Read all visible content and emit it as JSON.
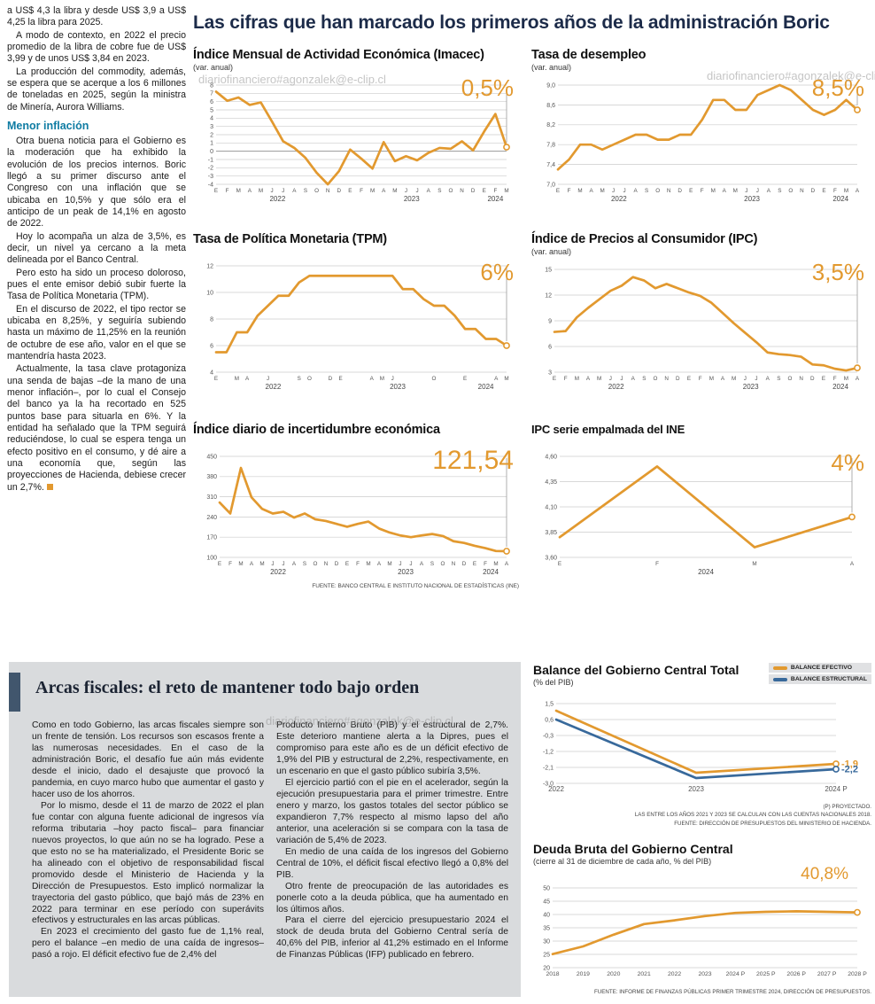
{
  "headline": "Las cifras que han marcado los primeros años de la administración Boric",
  "watermark": "diariofinanciero#agonzalek@e-clip.cl",
  "colors": {
    "accent_orange": "#E2992F",
    "accent_blue": "#38699B",
    "subhead_teal": "#0f7ca3",
    "headline_navy": "#1c2b49",
    "fiscal_box_bg": "#d9dbdd",
    "fiscal_accent_bar": "#41566d"
  },
  "article": {
    "paragraphs": [
      "a US$ 4,3 la libra y desde US$ 3,9 a US$ 4,25 la libra para 2025.",
      "A modo de contexto, en 2022 el precio promedio de la libra de cobre fue de US$ 3,99 y de unos US$ 3,84 en 2023.",
      "La producción del commodity, además, se espera que se acerque a los 6 millones de toneladas en 2025, según la ministra de Minería, Aurora Williams.",
      "Otra buena noticia para el Gobierno es la moderación que ha exhibido la evolución de los precios internos. Boric llegó a su primer discurso ante el Congreso con una inflación que se ubicaba en 10,5% y que sólo era el anticipo de un peak de 14,1% en agosto de 2022.",
      "Hoy lo acompaña un alza de 3,5%, es decir, un nivel ya cercano a la meta delineada por el Banco Central.",
      "Pero esto ha sido un proceso doloroso, pues el ente emisor debió subir fuerte la Tasa de Política Monetaria (TPM).",
      "En el discurso de 2022, el tipo rector se ubicaba en 8,25%, y seguiría subiendo hasta un máximo de 11,25% en la reunión de octubre de ese año, valor en el que se mantendría hasta 2023.",
      "Actualmente, la tasa clave protagoniza una senda de bajas –de la mano de una menor inflación–, por lo cual el Consejo del banco ya la ha recortado en 525 puntos base para situarla en 6%. Y la entidad ha señalado que la TPM seguirá reduciéndose, lo cual se espera tenga un efecto positivo en el consumo, y dé aire a una economía que, según las proyecciones de Hacienda, debiese crecer un 2,7%."
    ],
    "subhead": "Menor inflación"
  },
  "fiscal": {
    "headline": "Arcas fiscales: el reto de mantener todo bajo orden",
    "col1": [
      "Como en todo Gobierno, las arcas fiscales siempre son un frente de tensión. Los recursos son escasos frente a las numerosas necesidades. En el caso de la administración Boric, el desafío fue aún más evidente desde el inicio, dado el desajuste que provocó la pandemia, en cuyo marco hubo que aumentar el gasto y hacer uso de los ahorros.",
      "Por lo mismo, desde el 11 de marzo de 2022 el plan fue contar con alguna fuente adicional de ingresos vía reforma tributaria –hoy pacto fiscal– para financiar nuevos proyectos, lo que aún no se ha logrado. Pese a que esto no se ha materializado, el Presidente Boric se ha alineado con el objetivo de responsabilidad fiscal promovido desde el Ministerio de Hacienda y la Dirección de Presupuestos. Esto implicó normalizar la trayectoria del gasto público, que bajó más de 23% en 2022 para terminar en ese período con superávits efectivos y estructurales en las arcas públicas.",
      "En 2023 el crecimiento del gasto fue de 1,1% real, pero el balance –en medio de una caída de ingresos– pasó a rojo. El déficit efectivo fue de 2,4% del"
    ],
    "col2": [
      "Producto Interno Bruto (PIB) y el estructural de 2,7%. Este deterioro mantiene alerta a la Dipres, pues el compromiso para este año es de un déficit efectivo de 1,9% del PIB y estructural de 2,2%, respectivamente, en un escenario en que el gasto público subiría 3,5%.",
      "El ejercicio partió con el pie en el acelerador, según la ejecución presupuestaria para el primer trimestre. Entre enero y marzo, los gastos totales del sector público se expandieron 7,7% respecto al mismo lapso del año anterior, una aceleración si se compara con la tasa de variación de 5,4% de 2023.",
      "En medio de una caída de los ingresos del Gobierno Central de 10%, el déficit fiscal efectivo llegó a 0,8% del PIB.",
      "Otro frente de preocupación de las autoridades es ponerle coto a la deuda pública, que ha aumentado en los últimos años.",
      "Para el cierre del ejercicio presupuestario 2024 el stock de deuda bruta del Gobierno Central sería de 40,6% del PIB, inferior al 41,2% estimado en el Informe de Finanzas Públicas (IFP) publicado en febrero."
    ]
  },
  "chart_data": [
    {
      "id": "imacec",
      "type": "line",
      "title": "Índice Mensual de Actividad Económica (Imacec)",
      "subtitle": "(var. anual)",
      "big_value": "0,5%",
      "ylim": [
        -4,
        8
      ],
      "yticks": [
        8,
        7,
        6,
        5,
        4,
        3,
        2,
        1,
        0,
        -1,
        -2,
        -3,
        -4
      ],
      "xlabels": [
        "E",
        "F",
        "M",
        "A",
        "M",
        "J",
        "J",
        "A",
        "S",
        "O",
        "N",
        "D",
        "E",
        "F",
        "M",
        "A",
        "M",
        "J",
        "J",
        "A",
        "S",
        "O",
        "N",
        "D",
        "E",
        "F",
        "M"
      ],
      "years": [
        {
          "label": "2022",
          "center": 5.5
        },
        {
          "label": "2023",
          "center": 17.5
        },
        {
          "label": "2024",
          "center": 25
        }
      ],
      "end_line": true,
      "margins": {
        "l": 26,
        "r": 14,
        "t": 6,
        "b": 24
      },
      "series": [
        {
          "name": "Imacec",
          "color": "#E2992F",
          "end_marker": true,
          "values": [
            7.2,
            6.1,
            6.5,
            5.6,
            5.9,
            3.6,
            1.2,
            0.4,
            -0.8,
            -2.6,
            -4.0,
            -2.4,
            0.2,
            -0.9,
            -2.1,
            1.1,
            -1.2,
            -0.6,
            -1.1,
            -0.2,
            0.4,
            0.3,
            1.2,
            0.1,
            2.4,
            4.5,
            0.5
          ]
        }
      ]
    },
    {
      "id": "desempleo",
      "type": "line",
      "title": "Tasa de desempleo",
      "subtitle": "(var. anual)",
      "big_value": "8,5%",
      "ylim": [
        7.0,
        9.0
      ],
      "yticks": [
        9.0,
        8.6,
        8.2,
        7.8,
        7.4,
        7.0
      ],
      "ytick_labels": [
        "9,0",
        "8,6",
        "8,2",
        "7,8",
        "7,4",
        "7,0"
      ],
      "xlabels": [
        "E",
        "F",
        "M",
        "A",
        "M",
        "J",
        "J",
        "A",
        "S",
        "O",
        "N",
        "D",
        "E",
        "F",
        "M",
        "A",
        "M",
        "J",
        "J",
        "A",
        "S",
        "O",
        "N",
        "D",
        "E",
        "F",
        "M",
        "A"
      ],
      "years": [
        {
          "label": "2022",
          "center": 5.5
        },
        {
          "label": "2023",
          "center": 17.5
        },
        {
          "label": "2024",
          "center": 25.5
        }
      ],
      "end_line": true,
      "margins": {
        "l": 30,
        "r": 14,
        "t": 6,
        "b": 24
      },
      "series": [
        {
          "name": "Tasa de desempleo",
          "color": "#E2992F",
          "end_marker": true,
          "values": [
            7.3,
            7.5,
            7.8,
            7.8,
            7.7,
            7.8,
            7.9,
            8.0,
            8.0,
            7.9,
            7.9,
            8.0,
            8.0,
            8.3,
            8.7,
            8.7,
            8.5,
            8.5,
            8.8,
            8.9,
            9.0,
            8.9,
            8.7,
            8.5,
            8.4,
            8.5,
            8.7,
            8.5
          ]
        }
      ]
    },
    {
      "id": "tpm",
      "type": "line",
      "title": "Tasa de Política Monetaria (TPM)",
      "big_value": "6%",
      "ylim": [
        4,
        12
      ],
      "yticks": [
        12,
        10,
        8,
        6,
        4
      ],
      "xlabels": [
        "E",
        "",
        "M",
        "A",
        "",
        "J",
        "",
        "",
        "S",
        "O",
        "",
        "D",
        "E",
        "",
        "",
        "A",
        "M",
        "J",
        "",
        "",
        "",
        "O",
        "",
        "",
        "E",
        "",
        "",
        "A",
        "M"
      ],
      "years": [
        {
          "label": "2022",
          "center": 5.5
        },
        {
          "label": "2023",
          "center": 17.5
        },
        {
          "label": "2024",
          "center": 26
        }
      ],
      "end_line": true,
      "margins": {
        "l": 26,
        "r": 14,
        "t": 6,
        "b": 24
      },
      "series": [
        {
          "name": "TPM",
          "color": "#E2992F",
          "end_marker": true,
          "values": [
            5.5,
            5.5,
            7.0,
            7.0,
            8.25,
            9.0,
            9.75,
            9.75,
            10.75,
            11.25,
            11.25,
            11.25,
            11.25,
            11.25,
            11.25,
            11.25,
            11.25,
            11.25,
            10.25,
            10.25,
            9.5,
            9.0,
            9.0,
            8.25,
            7.25,
            7.25,
            6.5,
            6.5,
            6.0
          ]
        }
      ]
    },
    {
      "id": "ipc",
      "type": "line",
      "title": "Índice de Precios al Consumidor (IPC)",
      "subtitle": "(var. anual)",
      "big_value": "3,5%",
      "ylim": [
        3,
        15
      ],
      "yticks": [
        15,
        12,
        9,
        6,
        3
      ],
      "xlabels": [
        "E",
        "F",
        "M",
        "A",
        "M",
        "J",
        "J",
        "A",
        "S",
        "O",
        "N",
        "D",
        "E",
        "F",
        "M",
        "A",
        "M",
        "J",
        "J",
        "A",
        "S",
        "O",
        "N",
        "D",
        "E",
        "F",
        "M",
        "A"
      ],
      "years": [
        {
          "label": "2022",
          "center": 5.5
        },
        {
          "label": "2023",
          "center": 17.5
        },
        {
          "label": "2024",
          "center": 25.5
        }
      ],
      "end_line": true,
      "margins": {
        "l": 26,
        "r": 14,
        "t": 6,
        "b": 24
      },
      "series": [
        {
          "name": "IPC",
          "color": "#E2992F",
          "end_marker": true,
          "values": [
            7.7,
            7.8,
            9.4,
            10.5,
            11.5,
            12.5,
            13.1,
            14.1,
            13.7,
            12.8,
            13.3,
            12.8,
            12.3,
            11.9,
            11.1,
            9.9,
            8.7,
            7.6,
            6.5,
            5.3,
            5.1,
            5.0,
            4.8,
            3.9,
            3.8,
            3.4,
            3.2,
            3.5
          ]
        }
      ]
    },
    {
      "id": "incertidumbre",
      "type": "line",
      "title": "Índice diario de incertidumbre económica",
      "big_value": "121,54",
      "ylim": [
        100,
        450
      ],
      "yticks": [
        450,
        380,
        310,
        240,
        170,
        100
      ],
      "xlabels": [
        "E",
        "F",
        "M",
        "A",
        "M",
        "J",
        "J",
        "A",
        "S",
        "O",
        "N",
        "D",
        "E",
        "F",
        "M",
        "A",
        "M",
        "J",
        "J",
        "A",
        "S",
        "O",
        "N",
        "D",
        "E",
        "F",
        "M",
        "A"
      ],
      "years": [
        {
          "label": "2022",
          "center": 5.5
        },
        {
          "label": "2023",
          "center": 17.5
        },
        {
          "label": "2024",
          "center": 25.5
        }
      ],
      "end_line": true,
      "margins": {
        "l": 30,
        "r": 14,
        "t": 6,
        "b": 24
      },
      "source": "FUENTE: BANCO CENTRAL E INSTITUTO NACIONAL DE ESTADÍSTICAS (INE)",
      "series": [
        {
          "name": "Incertidumbre económica",
          "color": "#E2992F",
          "end_marker": true,
          "values": [
            290,
            252,
            410,
            308,
            268,
            252,
            258,
            238,
            252,
            232,
            226,
            216,
            206,
            216,
            224,
            200,
            186,
            176,
            170,
            176,
            181,
            174,
            156,
            150,
            140,
            132,
            122,
            121.54
          ]
        }
      ]
    },
    {
      "id": "ipc-ine",
      "type": "line",
      "title": "IPC serie empalmada del INE",
      "big_value": "4%",
      "ylim": [
        3.6,
        4.6
      ],
      "yticks": [
        4.6,
        4.35,
        4.1,
        3.85,
        3.6
      ],
      "ytick_labels": [
        "4,60",
        "4,35",
        "4,10",
        "3,85",
        "3,60"
      ],
      "xlabels": [
        "E",
        "F",
        "M",
        "A"
      ],
      "years": [
        {
          "label": "2024",
          "center": 1.5
        }
      ],
      "end_line": true,
      "margins": {
        "l": 32,
        "r": 20,
        "t": 6,
        "b": 24
      },
      "series": [
        {
          "name": "IPC serie empalmada",
          "color": "#E2992F",
          "end_marker": true,
          "values": [
            3.8,
            4.5,
            3.7,
            4.0
          ]
        }
      ]
    },
    {
      "id": "balance",
      "type": "line",
      "title": "Balance del Gobierno Central Total",
      "subtitle": "(% del PIB)",
      "legend": [
        {
          "label": "BALANCE EFECTIVO",
          "color": "#E2992F"
        },
        {
          "label": "BALANCE ESTRUCTURAL",
          "color": "#38699B"
        }
      ],
      "ylim": [
        -3.0,
        1.5
      ],
      "yticks": [
        1.5,
        0.6,
        -0.3,
        -1.2,
        -2.1,
        -3.0
      ],
      "ytick_labels": [
        "1,5",
        "0,6",
        "-0,3",
        "-1,2",
        "-2,1",
        "-3,0"
      ],
      "xlabels": [
        "2022",
        "2023",
        "2024 P"
      ],
      "xfont": 8,
      "margins": {
        "l": 26,
        "r": 40,
        "t": 6,
        "b": 16
      },
      "series": [
        {
          "name": "BALANCE EFECTIVO",
          "color": "#E2992F",
          "end_marker": true,
          "end_label": "-1,9",
          "values": [
            1.1,
            -2.4,
            -1.9
          ]
        },
        {
          "name": "BALANCE ESTRUCTURAL",
          "color": "#38699B",
          "end_marker": true,
          "end_label": "-2,2",
          "values": [
            0.6,
            -2.7,
            -2.2
          ]
        }
      ],
      "captions": [
        "(P) PROYECTADO.",
        "LAS ENTRE LOS AÑOS 2021 Y 2023 SE CALCULAN CON LAS CUENTAS NACIONALES 2018.",
        "FUENTE: DIRECCIÓN DE PRESUPUESTOS DEL MINISTERIO DE HACIENDA."
      ]
    },
    {
      "id": "deuda",
      "type": "line",
      "title": "Deuda Bruta del Gobierno Central",
      "subtitle": "(cierre al 31 de diciembre de cada año, % del PIB)",
      "big_value": "40,8%",
      "ylim": [
        20,
        50
      ],
      "yticks": [
        50,
        45,
        40,
        35,
        30,
        25,
        20
      ],
      "xlabels": [
        "2018",
        "2019",
        "2020",
        "2021",
        "2022",
        "2023",
        "2024 P",
        "2025 P",
        "2026 P",
        "2027 P",
        "2028 P"
      ],
      "xfont": 6.8,
      "margins": {
        "l": 22,
        "r": 16,
        "t": 8,
        "b": 16
      },
      "series": [
        {
          "name": "Deuda bruta",
          "color": "#E2992F",
          "end_marker": true,
          "values": [
            25.1,
            28.0,
            32.4,
            36.4,
            37.8,
            39.4,
            40.6,
            41.0,
            41.2,
            41.0,
            40.8
          ]
        }
      ],
      "caption": "FUENTE: INFORME DE FINANZAS PÚBLICAS PRIMER TRIMESTRE 2024, DIRECCIÓN DE PRESUPUESTOS."
    }
  ]
}
